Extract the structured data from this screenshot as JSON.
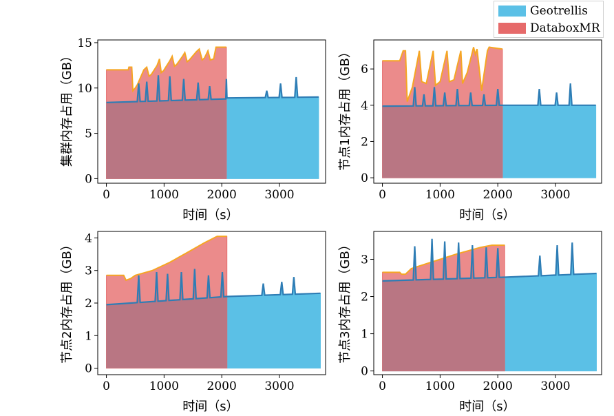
{
  "legend": {
    "items": [
      {
        "label": "Geotrellis",
        "color": "#5bc0e6"
      },
      {
        "label": "DataboxMR",
        "color": "#e66a6a"
      }
    ],
    "placement": "top-right"
  },
  "style": {
    "geo_fill": "#5bc0e6",
    "geo_line": "#2e7db5",
    "dbx_fill": "#e66a6a",
    "dbx_line": "#f5a623",
    "overlap_fill": "#b97683"
  },
  "chart_data": [
    {
      "type": "area",
      "ylabel": "集群内存占用（GB）",
      "xlabel": "时间（s）",
      "xlim": [
        -150,
        3800
      ],
      "ylim": [
        -0.5,
        15.3
      ],
      "xticks": [
        0,
        1000,
        2000,
        3000
      ],
      "yticks": [
        0,
        5,
        10,
        15
      ],
      "grid": false,
      "series": [
        {
          "name": "Geotrellis",
          "end": 3680,
          "base": [
            [
              0,
              8.4
            ],
            [
              2070,
              8.8
            ],
            [
              2090,
              8.9
            ],
            [
              3680,
              9.0
            ]
          ],
          "spikes": [
            [
              560,
              10.5
            ],
            [
              700,
              10.7
            ],
            [
              900,
              11.4
            ],
            [
              1100,
              11.3
            ],
            [
              1340,
              11.0
            ],
            [
              1590,
              10.6
            ],
            [
              1790,
              10.2
            ],
            [
              2080,
              11.0
            ],
            [
              2780,
              9.7
            ],
            [
              3020,
              10.5
            ],
            [
              3290,
              11.2
            ]
          ]
        },
        {
          "name": "DataboxMR",
          "end": 2080,
          "top": [
            [
              0,
              12.0
            ],
            [
              380,
              12.0
            ],
            [
              390,
              12.3
            ],
            [
              440,
              12.3
            ],
            [
              460,
              9.7
            ],
            [
              500,
              10.0
            ],
            [
              540,
              10.4
            ],
            [
              580,
              11.0
            ],
            [
              650,
              12.0
            ],
            [
              700,
              12.3
            ],
            [
              740,
              11.3
            ],
            [
              780,
              11.5
            ],
            [
              880,
              12.5
            ],
            [
              920,
              13.2
            ],
            [
              950,
              11.7
            ],
            [
              990,
              11.9
            ],
            [
              1100,
              13.0
            ],
            [
              1140,
              13.5
            ],
            [
              1180,
              12.4
            ],
            [
              1220,
              12.6
            ],
            [
              1320,
              13.5
            ],
            [
              1360,
              13.9
            ],
            [
              1400,
              12.9
            ],
            [
              1440,
              13.1
            ],
            [
              1560,
              14.0
            ],
            [
              1610,
              14.3
            ],
            [
              1660,
              13.1
            ],
            [
              1700,
              13.3
            ],
            [
              1760,
              14.1
            ],
            [
              1800,
              13.1
            ],
            [
              1860,
              13.2
            ],
            [
              1900,
              14.5
            ],
            [
              2080,
              14.5
            ]
          ]
        }
      ]
    },
    {
      "type": "area",
      "ylabel": "节点1内存占用（GB）",
      "xlabel": "时间（s）",
      "xlim": [
        -150,
        3800
      ],
      "ylim": [
        -0.3,
        7.6
      ],
      "xticks": [
        0,
        1000,
        2000,
        3000
      ],
      "yticks": [
        0,
        2,
        4,
        6
      ],
      "grid": false,
      "series": [
        {
          "name": "Geotrellis",
          "end": 3700,
          "base": [
            [
              0,
              3.95
            ],
            [
              2100,
              4.0
            ],
            [
              3700,
              4.0
            ]
          ],
          "spikes": [
            [
              560,
              5.0
            ],
            [
              720,
              4.6
            ],
            [
              900,
              5.0
            ],
            [
              1080,
              4.7
            ],
            [
              1300,
              4.9
            ],
            [
              1530,
              4.7
            ],
            [
              1760,
              4.6
            ],
            [
              2000,
              4.9
            ],
            [
              2720,
              4.9
            ],
            [
              3020,
              4.7
            ],
            [
              3260,
              5.2
            ]
          ]
        },
        {
          "name": "DataboxMR",
          "end": 2080,
          "top": [
            [
              0,
              6.45
            ],
            [
              300,
              6.45
            ],
            [
              360,
              7.0
            ],
            [
              400,
              7.0
            ],
            [
              430,
              4.2
            ],
            [
              520,
              5.0
            ],
            [
              640,
              7.0
            ],
            [
              680,
              5.3
            ],
            [
              760,
              5.2
            ],
            [
              880,
              7.0
            ],
            [
              920,
              5.1
            ],
            [
              1000,
              5.3
            ],
            [
              1120,
              7.0
            ],
            [
              1160,
              5.3
            ],
            [
              1240,
              5.4
            ],
            [
              1360,
              7.0
            ],
            [
              1390,
              5.2
            ],
            [
              1470,
              5.8
            ],
            [
              1580,
              7.2
            ],
            [
              1610,
              6.8
            ],
            [
              1640,
              7.1
            ],
            [
              1700,
              5.4
            ],
            [
              1720,
              4.8
            ],
            [
              1820,
              7.0
            ],
            [
              1850,
              7.2
            ],
            [
              2080,
              7.1
            ]
          ]
        }
      ]
    },
    {
      "type": "area",
      "ylabel": "节点2内存占用（GB）",
      "xlabel": "时间（s）",
      "xlim": [
        -150,
        3800
      ],
      "ylim": [
        -0.2,
        4.2
      ],
      "xticks": [
        0,
        1000,
        2000,
        3000
      ],
      "yticks": [
        0,
        1,
        2,
        3,
        4
      ],
      "grid": false,
      "series": [
        {
          "name": "Geotrellis",
          "end": 3710,
          "base": [
            [
              0,
              1.95
            ],
            [
              2090,
              2.2
            ],
            [
              3710,
              2.3
            ]
          ],
          "spikes": [
            [
              560,
              2.85
            ],
            [
              870,
              2.95
            ],
            [
              1060,
              2.9
            ],
            [
              1300,
              2.95
            ],
            [
              1530,
              3.05
            ],
            [
              1770,
              2.85
            ],
            [
              2010,
              2.95
            ],
            [
              2720,
              2.6
            ],
            [
              3040,
              2.65
            ],
            [
              3250,
              2.8
            ]
          ]
        },
        {
          "name": "DataboxMR",
          "end": 2090,
          "top": [
            [
              0,
              2.85
            ],
            [
              300,
              2.85
            ],
            [
              340,
              2.7
            ],
            [
              420,
              2.75
            ],
            [
              500,
              2.85
            ],
            [
              800,
              3.0
            ],
            [
              1100,
              3.25
            ],
            [
              1400,
              3.55
            ],
            [
              1700,
              3.85
            ],
            [
              1920,
              4.05
            ],
            [
              2090,
              4.05
            ]
          ]
        }
      ]
    },
    {
      "type": "area",
      "ylabel": "节点3内存占用（GB）",
      "xlabel": "时间（s）",
      "xlim": [
        -150,
        3800
      ],
      "ylim": [
        -0.1,
        3.75
      ],
      "xticks": [
        0,
        1000,
        2000,
        3000
      ],
      "yticks": [
        0,
        1,
        2,
        3
      ],
      "grid": false,
      "series": [
        {
          "name": "Geotrellis",
          "end": 3710,
          "base": [
            [
              0,
              2.42
            ],
            [
              2120,
              2.52
            ],
            [
              3710,
              2.62
            ]
          ],
          "spikes": [
            [
              560,
              3.35
            ],
            [
              860,
              3.55
            ],
            [
              1080,
              3.48
            ],
            [
              1320,
              3.45
            ],
            [
              1560,
              3.38
            ],
            [
              1800,
              3.32
            ],
            [
              2000,
              3.3
            ],
            [
              2730,
              3.1
            ],
            [
              3030,
              3.38
            ],
            [
              3290,
              3.45
            ]
          ]
        },
        {
          "name": "DataboxMR",
          "end": 2120,
          "top": [
            [
              0,
              2.65
            ],
            [
              300,
              2.65
            ],
            [
              330,
              2.6
            ],
            [
              400,
              2.6
            ],
            [
              500,
              2.75
            ],
            [
              900,
              2.95
            ],
            [
              1300,
              3.15
            ],
            [
              1700,
              3.32
            ],
            [
              1900,
              3.38
            ],
            [
              2120,
              3.38
            ]
          ]
        }
      ]
    }
  ]
}
